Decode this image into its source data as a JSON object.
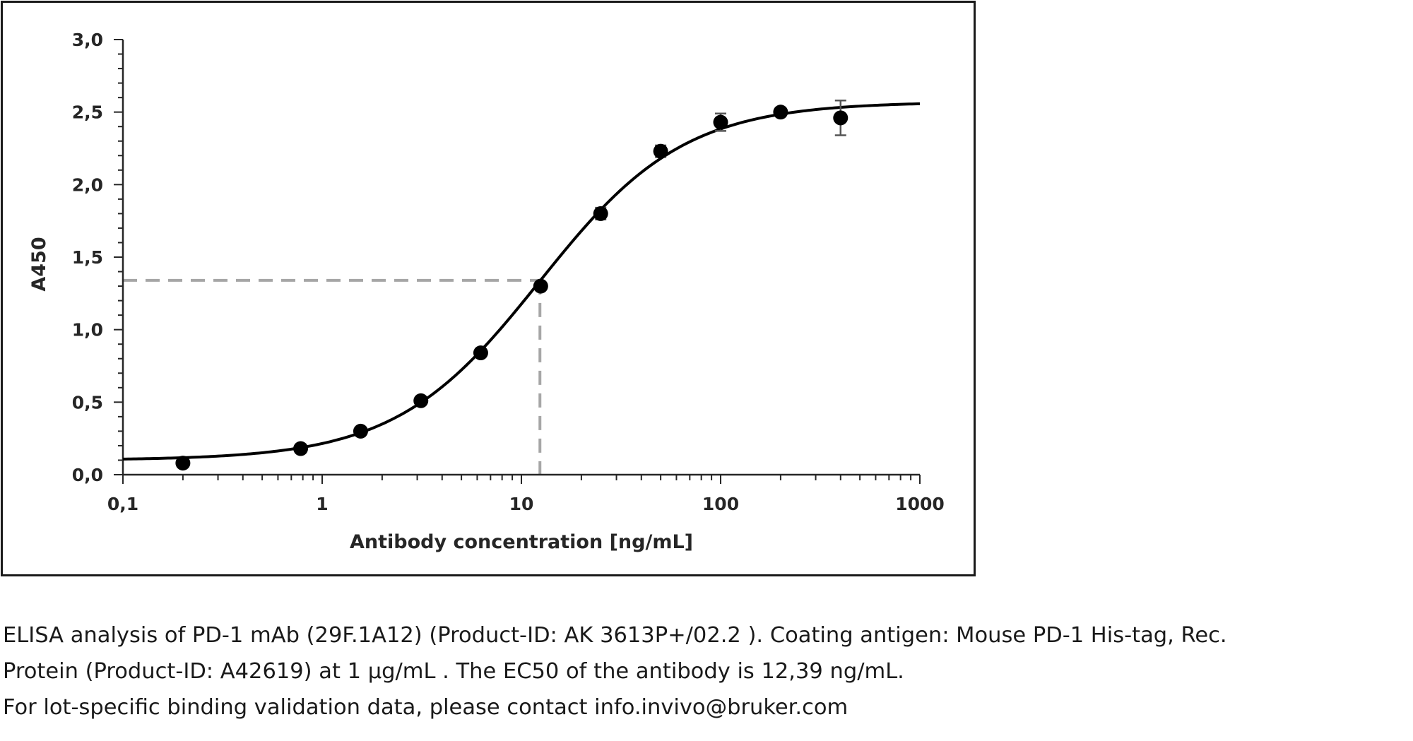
{
  "chart_data": {
    "type": "scatter",
    "xlabel": "Antibody concentration [ng/mL]",
    "ylabel": "A450",
    "xscale": "log",
    "xlim": [
      0.1,
      1000
    ],
    "ylim": [
      0,
      3
    ],
    "x_ticks": [
      "0,1",
      "1",
      "10",
      "100",
      "1000"
    ],
    "y_ticks": [
      "0,0",
      "0,5",
      "1,0",
      "1,5",
      "2,0",
      "2,5",
      "3,0"
    ],
    "grid": false,
    "legend": "none",
    "series": [
      {
        "x": [
          0.2,
          0.78,
          1.56,
          3.13,
          6.25,
          12.5,
          25,
          50,
          100,
          200,
          400
        ],
        "y": [
          0.08,
          0.18,
          0.3,
          0.51,
          0.84,
          1.3,
          1.8,
          2.23,
          2.43,
          2.5,
          2.46
        ],
        "error": [
          0,
          0,
          0,
          0,
          0,
          0,
          0.04,
          0.04,
          0.06,
          0.02,
          0.12
        ],
        "color": "#000000"
      }
    ],
    "fit": {
      "model": "4PL",
      "bottom": 0.1,
      "top": 2.57,
      "ec50": 12.39,
      "hill": 1.2,
      "color": "#000000"
    },
    "ec50_marker": {
      "x": 12.39,
      "y": 1.34,
      "color": "#a6a6a6",
      "style": "dashed"
    }
  },
  "caption": {
    "line1": "ELISA analysis of PD-1 mAb (29F.1A12) (Product-ID: AK 3613P+/02.2 ). Coating antigen: Mouse PD-1 His-tag, Rec.",
    "line2": "Protein (Product-ID: A42619) at 1 µg/mL . The EC50 of the antibody is 12,39 ng/mL.",
    "line3": "For lot-specific binding validation data, please contact info.invivo@bruker.com"
  }
}
